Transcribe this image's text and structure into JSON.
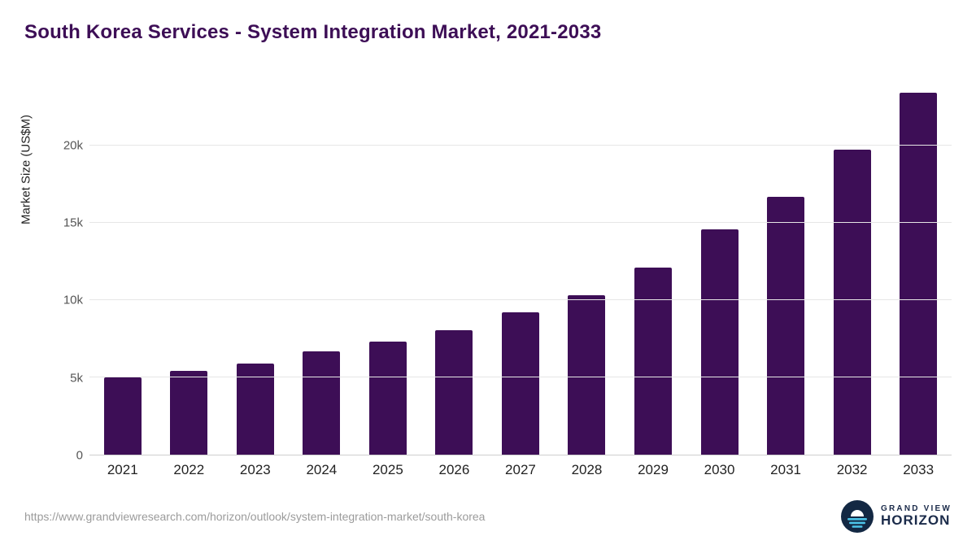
{
  "chart_data": {
    "type": "bar",
    "title": "South Korea Services - System Integration Market, 2021-2033",
    "xlabel": "",
    "ylabel": "Market Size (US$M)",
    "categories": [
      "2021",
      "2022",
      "2023",
      "2024",
      "2025",
      "2026",
      "2027",
      "2028",
      "2029",
      "2030",
      "2031",
      "2032",
      "2033"
    ],
    "values": [
      5000,
      5400,
      5900,
      6650,
      7300,
      8050,
      9200,
      10300,
      12100,
      14550,
      16650,
      19700,
      23400
    ],
    "ylim": [
      0,
      23600
    ],
    "yticks": [
      {
        "label": "0",
        "value": 0
      },
      {
        "label": "5k",
        "value": 5000
      },
      {
        "label": "10k",
        "value": 10000
      },
      {
        "label": "15k",
        "value": 15000
      },
      {
        "label": "20k",
        "value": 20000
      }
    ],
    "grid": true,
    "legend_position": "none",
    "bar_color": "#3d0e56"
  },
  "colors": {
    "title": "#3d0e56",
    "gridline": "#e6e6e6",
    "axis_text": "#555555",
    "logo_navy": "#132843",
    "logo_cyan": "#4cc4e8"
  },
  "footer": {
    "source_url": "https://www.grandviewresearch.com/horizon/outlook/system-integration-market/south-korea",
    "logo": {
      "line1": "GRAND VIEW",
      "line2": "HORIZON"
    }
  }
}
